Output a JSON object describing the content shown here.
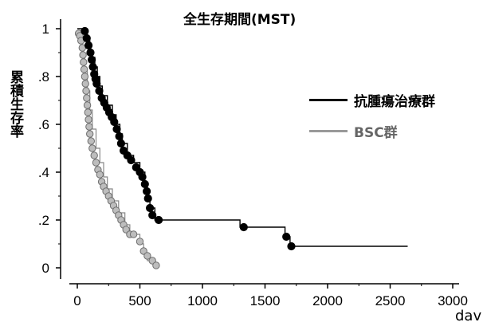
{
  "chart_data": {
    "type": "line",
    "title": "全生存期間(MST)",
    "ylabel": "累積生存率",
    "xlabel": "dav",
    "xlim": [
      0,
      3000
    ],
    "ylim": [
      0,
      1
    ],
    "x_ticks": [
      0,
      500,
      1000,
      1500,
      2000,
      2500,
      3000
    ],
    "x_tick_labels": [
      "0",
      "500",
      "1000",
      "1500",
      "2000",
      "2500",
      "3000"
    ],
    "y_ticks": [
      0,
      0.2,
      0.4,
      0.6,
      0.8,
      1
    ],
    "y_tick_labels": [
      "0",
      ".2",
      ".4",
      ".6",
      ".8",
      "1"
    ],
    "grid": false,
    "legend_position": "right",
    "series": [
      {
        "name": "抗腫瘍治療群",
        "color": "#000000",
        "step": [
          [
            0,
            1.0
          ],
          [
            60,
            1.0
          ],
          [
            60,
            0.98
          ],
          [
            80,
            0.98
          ],
          [
            80,
            0.95
          ],
          [
            100,
            0.95
          ],
          [
            100,
            0.91
          ],
          [
            120,
            0.91
          ],
          [
            120,
            0.88
          ],
          [
            140,
            0.88
          ],
          [
            140,
            0.84
          ],
          [
            160,
            0.84
          ],
          [
            160,
            0.8
          ],
          [
            180,
            0.8
          ],
          [
            180,
            0.76
          ],
          [
            200,
            0.76
          ],
          [
            200,
            0.72
          ],
          [
            240,
            0.72
          ],
          [
            240,
            0.68
          ],
          [
            280,
            0.68
          ],
          [
            280,
            0.64
          ],
          [
            310,
            0.64
          ],
          [
            310,
            0.6
          ],
          [
            340,
            0.6
          ],
          [
            340,
            0.56
          ],
          [
            360,
            0.56
          ],
          [
            360,
            0.52
          ],
          [
            400,
            0.52
          ],
          [
            400,
            0.47
          ],
          [
            450,
            0.47
          ],
          [
            450,
            0.44
          ],
          [
            500,
            0.44
          ],
          [
            500,
            0.4
          ],
          [
            540,
            0.4
          ],
          [
            540,
            0.35
          ],
          [
            560,
            0.35
          ],
          [
            560,
            0.3
          ],
          [
            580,
            0.3
          ],
          [
            580,
            0.25
          ],
          [
            620,
            0.25
          ],
          [
            620,
            0.2
          ],
          [
            1300,
            0.2
          ],
          [
            1300,
            0.17
          ],
          [
            1660,
            0.17
          ],
          [
            1660,
            0.13
          ],
          [
            1700,
            0.13
          ],
          [
            1700,
            0.09
          ],
          [
            2640,
            0.09
          ]
        ],
        "points": [
          [
            60,
            0.99
          ],
          [
            75,
            0.96
          ],
          [
            90,
            0.93
          ],
          [
            105,
            0.9
          ],
          [
            115,
            0.87
          ],
          [
            125,
            0.84
          ],
          [
            135,
            0.81
          ],
          [
            145,
            0.79
          ],
          [
            155,
            0.77
          ],
          [
            175,
            0.74
          ],
          [
            195,
            0.71
          ],
          [
            215,
            0.69
          ],
          [
            235,
            0.67
          ],
          [
            255,
            0.65
          ],
          [
            275,
            0.63
          ],
          [
            295,
            0.61
          ],
          [
            315,
            0.58
          ],
          [
            335,
            0.55
          ],
          [
            350,
            0.52
          ],
          [
            370,
            0.49
          ],
          [
            400,
            0.47
          ],
          [
            430,
            0.45
          ],
          [
            470,
            0.42
          ],
          [
            500,
            0.4
          ],
          [
            520,
            0.38
          ],
          [
            540,
            0.35
          ],
          [
            555,
            0.32
          ],
          [
            565,
            0.29
          ],
          [
            580,
            0.25
          ],
          [
            600,
            0.22
          ],
          [
            650,
            0.2
          ],
          [
            1330,
            0.17
          ],
          [
            1670,
            0.13
          ],
          [
            1710,
            0.09
          ]
        ]
      },
      {
        "name": "BSC群",
        "color": "#9a9a9a",
        "step": [
          [
            0,
            0.98
          ],
          [
            20,
            0.98
          ],
          [
            20,
            0.96
          ],
          [
            40,
            0.96
          ],
          [
            40,
            0.9
          ],
          [
            60,
            0.9
          ],
          [
            60,
            0.82
          ],
          [
            80,
            0.82
          ],
          [
            80,
            0.74
          ],
          [
            100,
            0.74
          ],
          [
            100,
            0.66
          ],
          [
            120,
            0.66
          ],
          [
            120,
            0.58
          ],
          [
            150,
            0.58
          ],
          [
            150,
            0.5
          ],
          [
            180,
            0.5
          ],
          [
            180,
            0.44
          ],
          [
            210,
            0.44
          ],
          [
            210,
            0.38
          ],
          [
            240,
            0.38
          ],
          [
            240,
            0.33
          ],
          [
            280,
            0.33
          ],
          [
            280,
            0.28
          ],
          [
            330,
            0.28
          ],
          [
            330,
            0.23
          ],
          [
            380,
            0.23
          ],
          [
            380,
            0.18
          ],
          [
            420,
            0.18
          ],
          [
            420,
            0.14
          ],
          [
            500,
            0.14
          ],
          [
            500,
            0.1
          ],
          [
            530,
            0.1
          ],
          [
            530,
            0.06
          ],
          [
            560,
            0.06
          ],
          [
            560,
            0.03
          ],
          [
            610,
            0.03
          ],
          [
            610,
            0.01
          ],
          [
            630,
            0.01
          ]
        ],
        "points": [
          [
            10,
            0.98
          ],
          [
            20,
            0.97
          ],
          [
            30,
            0.95
          ],
          [
            40,
            0.92
          ],
          [
            45,
            0.89
          ],
          [
            50,
            0.86
          ],
          [
            55,
            0.83
          ],
          [
            60,
            0.8
          ],
          [
            65,
            0.77
          ],
          [
            70,
            0.74
          ],
          [
            75,
            0.71
          ],
          [
            80,
            0.68
          ],
          [
            85,
            0.65
          ],
          [
            90,
            0.62
          ],
          [
            95,
            0.59
          ],
          [
            100,
            0.56
          ],
          [
            110,
            0.53
          ],
          [
            120,
            0.5
          ],
          [
            135,
            0.47
          ],
          [
            150,
            0.44
          ],
          [
            165,
            0.41
          ],
          [
            180,
            0.39
          ],
          [
            195,
            0.36
          ],
          [
            210,
            0.34
          ],
          [
            230,
            0.32
          ],
          [
            250,
            0.3
          ],
          [
            270,
            0.28
          ],
          [
            290,
            0.26
          ],
          [
            310,
            0.24
          ],
          [
            330,
            0.22
          ],
          [
            350,
            0.2
          ],
          [
            370,
            0.18
          ],
          [
            390,
            0.16
          ],
          [
            420,
            0.14
          ],
          [
            450,
            0.14
          ],
          [
            500,
            0.11
          ],
          [
            530,
            0.07
          ],
          [
            560,
            0.05
          ],
          [
            600,
            0.03
          ],
          [
            630,
            0.01
          ]
        ]
      }
    ]
  }
}
